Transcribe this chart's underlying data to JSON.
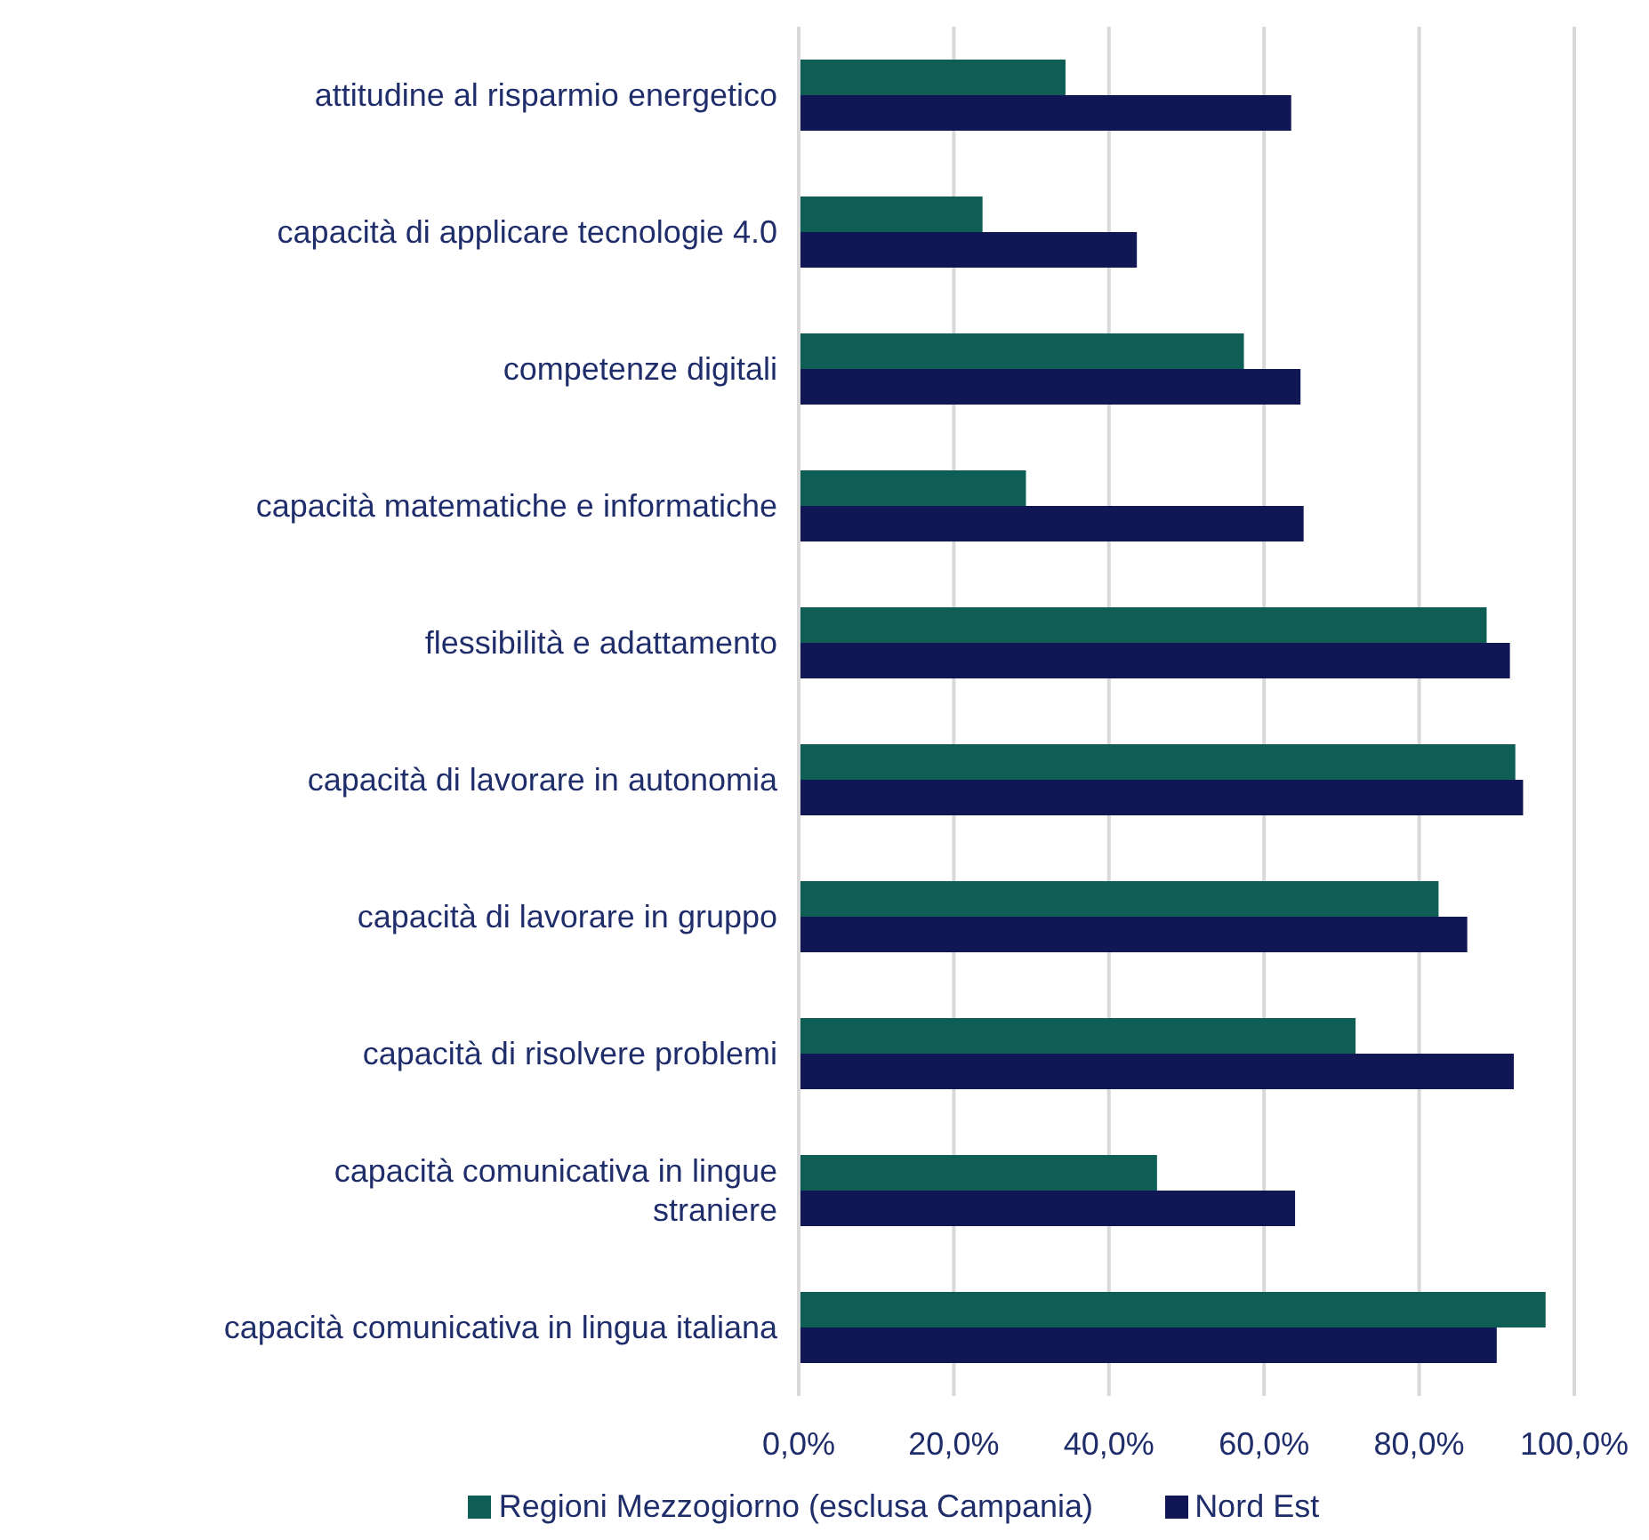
{
  "chart_data": {
    "type": "bar",
    "orientation": "horizontal",
    "categories": [
      "attitudine al risparmio energetico",
      "capacità di applicare tecnologie 4.0",
      "competenze digitali",
      "capacità matematiche e informatiche",
      "flessibilità e adattamento",
      "capacità di lavorare in autonomia",
      "capacità di lavorare in gruppo",
      "capacità di risolvere problemi",
      "capacità comunicativa in lingue straniere",
      "capacità comunicativa in lingua italiana"
    ],
    "series": [
      {
        "name": "Regioni Mezzogiorno (esclusa Campania)",
        "color": "#0e5e55",
        "values": [
          34.4,
          23.7,
          57.4,
          29.3,
          88.7,
          92.4,
          82.5,
          71.8,
          46.2,
          96.3
        ]
      },
      {
        "name": "Nord Est",
        "color": "#111654",
        "values": [
          63.5,
          43.6,
          64.7,
          65.1,
          91.7,
          93.4,
          86.2,
          92.2,
          64.0,
          90.0
        ]
      }
    ],
    "xlim": [
      0,
      100
    ],
    "xticks": [
      {
        "value": 0,
        "label": "0,0%"
      },
      {
        "value": 20,
        "label": "20,0%"
      },
      {
        "value": 40,
        "label": "40,0%"
      },
      {
        "value": 60,
        "label": "60,0%"
      },
      {
        "value": 80,
        "label": "80,0%"
      },
      {
        "value": 100,
        "label": "100,0%"
      }
    ],
    "grid": "x",
    "legend": "bottom"
  }
}
